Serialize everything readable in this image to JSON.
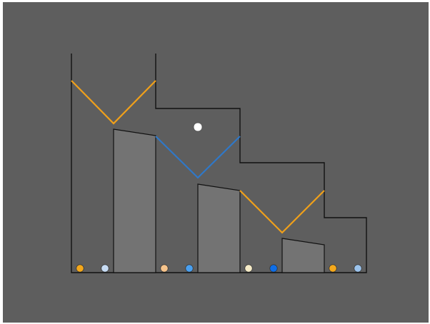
{
  "colors": {
    "background": "#5e5e5e",
    "outline": "#111111",
    "block_fill": "#737373",
    "ball": "#ffffff",
    "orange_line": "#f0a01a",
    "blue_line": "#2f78c8"
  },
  "game": {
    "ball": {
      "color": "#ffffff",
      "icon": "ball-icon"
    },
    "blocks_count": 3,
    "zigzag_colors": [
      "#f0a01a",
      "#2f78c8",
      "#f0a01a"
    ],
    "markers": [
      {
        "name": "marker-1",
        "color": "#f4a81c"
      },
      {
        "name": "marker-2",
        "color": "#c7dcf4"
      },
      {
        "name": "marker-3",
        "color": "#f6c48c"
      },
      {
        "name": "marker-4",
        "color": "#4aa0f0"
      },
      {
        "name": "marker-5",
        "color": "#f6ecc8"
      },
      {
        "name": "marker-6",
        "color": "#0f6ee6"
      },
      {
        "name": "marker-7",
        "color": "#f4a81c"
      },
      {
        "name": "marker-8",
        "color": "#9cc4ec"
      }
    ]
  }
}
